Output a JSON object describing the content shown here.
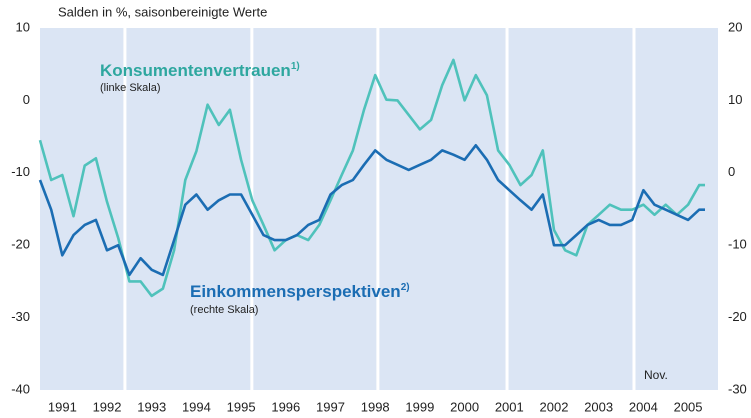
{
  "chart_data": {
    "type": "line",
    "title": "Salden in %, saisonbereinigte Werte",
    "annotation": "Nov.",
    "xlim": [
      1991,
      2006.17
    ],
    "xticks": [
      {
        "value": 1991.5,
        "label": "1991"
      },
      {
        "value": 1992.5,
        "label": "1992"
      },
      {
        "value": 1993.5,
        "label": "1993"
      },
      {
        "value": 1994.5,
        "label": "1994"
      },
      {
        "value": 1995.5,
        "label": "1995"
      },
      {
        "value": 1996.5,
        "label": "1996"
      },
      {
        "value": 1997.5,
        "label": "1997"
      },
      {
        "value": 1998.5,
        "label": "1998"
      },
      {
        "value": 1999.5,
        "label": "1999"
      },
      {
        "value": 2000.5,
        "label": "2000"
      },
      {
        "value": 2001.5,
        "label": "2001"
      },
      {
        "value": 2002.5,
        "label": "2002"
      },
      {
        "value": 2003.5,
        "label": "2003"
      },
      {
        "value": 2004.5,
        "label": "2004"
      },
      {
        "value": 2005.5,
        "label": "2005"
      }
    ],
    "ylim": [
      -40,
      10
    ],
    "yticks": [
      10,
      0,
      -10,
      -20,
      -30,
      -40
    ],
    "y2lim": [
      -30,
      20
    ],
    "y2ticks": [
      20,
      10,
      0,
      -10,
      -20,
      -30
    ],
    "vertical_lines": [
      1992.9,
      1995.74,
      1998.56,
      2001.45,
      2004.29
    ],
    "background": "#dbe5f4",
    "x": [
      1991,
      1991.25,
      1991.5,
      1991.75,
      1992,
      1992.25,
      1992.5,
      1992.75,
      1993,
      1993.25,
      1993.5,
      1993.75,
      1994,
      1994.25,
      1994.5,
      1994.75,
      1995,
      1995.25,
      1995.5,
      1995.75,
      1996,
      1996.25,
      1996.5,
      1996.75,
      1997,
      1997.25,
      1997.5,
      1997.75,
      1998,
      1998.25,
      1998.5,
      1998.75,
      1999,
      1999.25,
      1999.5,
      1999.75,
      2000,
      2000.25,
      2000.5,
      2000.75,
      2001,
      2001.25,
      2001.5,
      2001.75,
      2002,
      2002.25,
      2002.5,
      2002.75,
      2003,
      2003.25,
      2003.5,
      2003.75,
      2004,
      2004.25,
      2004.5,
      2004.75,
      2005,
      2005.25,
      2005.5,
      2005.75,
      2005.88
    ],
    "series": [
      {
        "name": "Konsumentenvertrauen",
        "footnote": "1)",
        "scale_note": "(linke Skala)",
        "color": "#4fc2bb",
        "axis": "y",
        "values": [
          -5.5,
          -11,
          -10.3,
          -16,
          -9,
          -8,
          -14,
          -19,
          -25,
          -25,
          -27,
          -26,
          -20.7,
          -11,
          -7,
          -0.6,
          -3.4,
          -1.3,
          -8.2,
          -13.8,
          -17.2,
          -20.7,
          -19.3,
          -18.6,
          -19.3,
          -17.2,
          -13.8,
          -10.3,
          -6.9,
          -1.3,
          3.5,
          0.1,
          0,
          -2,
          -4,
          -2.7,
          2.1,
          5.6,
          0,
          3.5,
          0.7,
          -6.9,
          -8.9,
          -11.7,
          -10.3,
          -6.9,
          -17.9,
          -20.7,
          -21.4,
          -17.2,
          -15.8,
          -14.4,
          -15.1,
          -15.1,
          -14.4,
          -15.8,
          -14.4,
          -15.8,
          -14.4,
          -11.7,
          -11.7
        ]
      },
      {
        "name": "Einkommensperspektiven",
        "footnote": "2)",
        "scale_note": "(rechte Skala)",
        "color": "#1b6db3",
        "axis": "y2",
        "values": [
          -1,
          -5.1,
          -11.4,
          -8.6,
          -7.2,
          -6.5,
          -10.7,
          -10,
          -14.1,
          -11.8,
          -13.4,
          -14.1,
          -9.3,
          -4.4,
          -3,
          -5.1,
          -3.8,
          -3,
          -3,
          -5.8,
          -8.6,
          -9.3,
          -9.3,
          -8.6,
          -7.2,
          -6.5,
          -3,
          -1.7,
          -1,
          1.1,
          3.1,
          1.8,
          1.1,
          0.4,
          1.1,
          1.8,
          3.1,
          2.5,
          1.8,
          3.8,
          1.8,
          -1,
          -2.4,
          -3.8,
          -5.1,
          -3,
          -10,
          -10,
          -8.6,
          -7.2,
          -6.5,
          -7.2,
          -7.2,
          -6.5,
          -2.4,
          -4.4,
          -5.1,
          -5.8,
          -6.5,
          -5.1,
          -5.1
        ]
      }
    ]
  }
}
